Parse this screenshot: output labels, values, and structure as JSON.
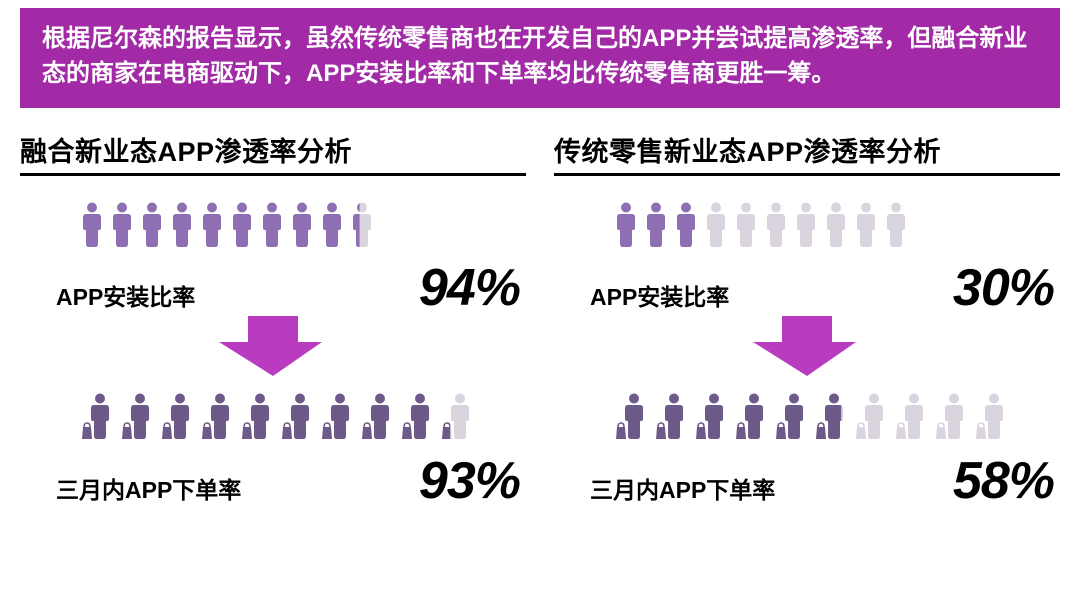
{
  "colors": {
    "banner_bg": "#a22aa6",
    "banner_text": "#ffffff",
    "accent": "#b93cc0",
    "icon_filled": "#8e6fb3",
    "icon_filled_dark": "#6e5a89",
    "icon_empty": "#d9d4de",
    "text": "#000000",
    "underline": "#000000"
  },
  "banner_text": "根据尼尔森的报告显示，虽然传统零售商也在开发自己的APP并尝试提高渗透率，但融合新业态的商家在电商驱动下，APP安装比率和下单率均比传统零售商更胜一筹。",
  "panels": [
    {
      "title": "融合新业态APP渗透率分析",
      "install": {
        "label": "APP安装比率",
        "value": "94%",
        "filled_of_10": 9.4,
        "icon_color": "#8e6fb3",
        "empty_color": "#d9d4de"
      },
      "order": {
        "label": "三月内APP下单率",
        "value": "93%",
        "filled_of_10": 9.3,
        "icon_color": "#6e5a89",
        "empty_color": "#d9d4de"
      }
    },
    {
      "title": "传统零售新业态APP渗透率分析",
      "install": {
        "label": "APP安装比率",
        "value": "30%",
        "filled_of_10": 3,
        "icon_color": "#8e6fb3",
        "empty_color": "#d9d4de"
      },
      "order": {
        "label": "三月内APP下单率",
        "value": "58%",
        "filled_of_10": 5.8,
        "icon_color": "#6e5a89",
        "empty_color": "#d9d4de"
      }
    }
  ],
  "arrow_color": "#b93cc0",
  "pictogram": {
    "count": 10,
    "person_width": 24,
    "person_height": 46,
    "shopper_width": 34,
    "shopper_height": 48
  },
  "typography": {
    "banner_fontsize": 24,
    "panel_title_fontsize": 27,
    "stat_label_fontsize": 23,
    "stat_value_fontsize": 52,
    "stat_value_style": "italic"
  }
}
